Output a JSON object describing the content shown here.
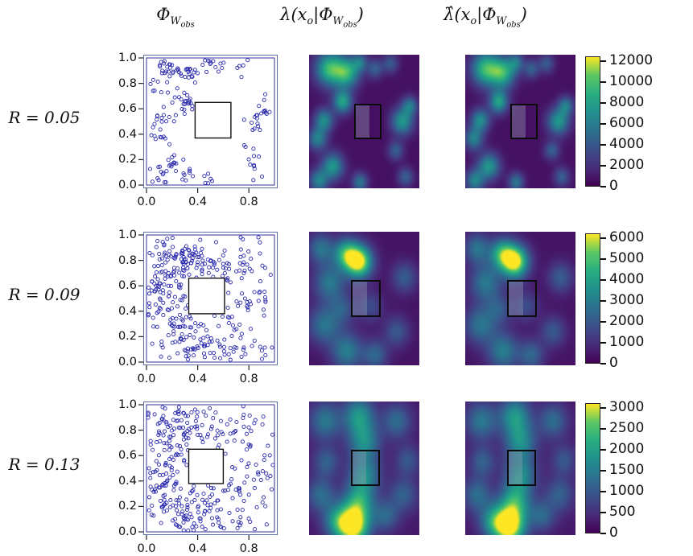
{
  "headers": {
    "col1": {
      "parts": [
        "Φ",
        "W",
        "obs"
      ]
    },
    "col2": {
      "parts": [
        "λ(x",
        "o",
        "|Φ",
        "W",
        "obs",
        ")"
      ]
    },
    "col3": {
      "parts": [
        "λ̂(x",
        "o",
        "|Φ",
        "W",
        "obs",
        ")"
      ]
    }
  },
  "chart_data": {
    "type": "heatmap",
    "description": "3x3 grid: observed clustered point patterns Φ_W_obs (left), true conditional intensity λ(x_o|Φ_W_obs) (middle) and estimated intensity λ̂(x_o|Φ_W_obs) (right) on [0,1]^2 with a square unobserved window, for cluster radii R = 0.05, 0.09, 0.13.",
    "colormap": "viridis",
    "point_color": "#2929ad",
    "rows": [
      {
        "label": "R = 0.05",
        "scatter": {
          "x_ticks": [
            "0.0",
            "0.4",
            "0.8"
          ],
          "y_ticks": [
            "1.0",
            "0.8",
            "0.6",
            "0.4",
            "0.2",
            "0.0"
          ],
          "xlim": [
            0,
            1
          ],
          "ylim": [
            0,
            1
          ],
          "cluster_radius": 0.05,
          "clusters": [
            [
              0.17,
              0.92,
              20
            ],
            [
              0.32,
              0.88,
              18
            ],
            [
              0.46,
              0.95,
              10
            ],
            [
              0.1,
              0.8,
              8
            ],
            [
              0.3,
              0.66,
              16
            ],
            [
              0.4,
              0.62,
              6
            ],
            [
              0.13,
              0.52,
              12
            ],
            [
              0.07,
              0.38,
              10
            ],
            [
              0.22,
              0.17,
              14
            ],
            [
              0.09,
              0.06,
              10
            ],
            [
              0.3,
              0.04,
              8
            ],
            [
              0.47,
              0.05,
              6
            ],
            [
              0.85,
              0.5,
              13
            ],
            [
              0.92,
              0.62,
              8
            ],
            [
              0.79,
              0.28,
              6
            ],
            [
              0.88,
              0.09,
              6
            ],
            [
              0.74,
              0.94,
              5
            ],
            [
              0.6,
              0.9,
              4
            ]
          ],
          "hole": [
            0.38,
            0.37,
            0.28,
            0.28
          ]
        },
        "field": {
          "base": 0.05,
          "blobs": [
            [
              0.18,
              0.9,
              0.09,
              0.7
            ],
            [
              0.34,
              0.87,
              0.08,
              0.65
            ],
            [
              0.3,
              0.65,
              0.06,
              0.6
            ],
            [
              0.13,
              0.51,
              0.06,
              0.5
            ],
            [
              0.07,
              0.37,
              0.06,
              0.45
            ],
            [
              0.21,
              0.16,
              0.07,
              0.55
            ],
            [
              0.08,
              0.05,
              0.06,
              0.45
            ],
            [
              0.46,
              0.04,
              0.05,
              0.4
            ],
            [
              0.85,
              0.5,
              0.07,
              0.55
            ],
            [
              0.92,
              0.62,
              0.05,
              0.4
            ],
            [
              0.79,
              0.28,
              0.05,
              0.3
            ],
            [
              0.88,
              0.08,
              0.05,
              0.3
            ],
            [
              0.74,
              0.94,
              0.05,
              0.28
            ],
            [
              0.6,
              0.9,
              0.05,
              0.3
            ],
            [
              0.46,
              0.95,
              0.05,
              0.35
            ]
          ],
          "square": [
            0.41,
            0.37,
            0.25,
            0.26
          ]
        },
        "colorbar": {
          "vmax": 12000,
          "ticks": [
            12000,
            10000,
            8000,
            6000,
            4000,
            2000,
            0
          ]
        }
      },
      {
        "label": "R = 0.09",
        "scatter": {
          "x_ticks": [
            "0.0",
            "0.4",
            "0.8"
          ],
          "y_ticks": [
            "1.0",
            "0.8",
            "0.6",
            "0.4",
            "0.2",
            "0.0"
          ],
          "xlim": [
            0,
            1
          ],
          "ylim": [
            0,
            1
          ],
          "cluster_radius": 0.09,
          "clusters": [
            [
              0.35,
              0.85,
              38
            ],
            [
              0.5,
              0.78,
              30
            ],
            [
              0.24,
              0.73,
              26
            ],
            [
              0.13,
              0.9,
              22
            ],
            [
              0.08,
              0.6,
              22
            ],
            [
              0.2,
              0.5,
              22
            ],
            [
              0.08,
              0.35,
              18
            ],
            [
              0.2,
              0.2,
              22
            ],
            [
              0.35,
              0.1,
              24
            ],
            [
              0.52,
              0.05,
              14
            ],
            [
              0.65,
              0.1,
              14
            ],
            [
              0.3,
              0.35,
              18
            ],
            [
              0.65,
              0.8,
              14
            ],
            [
              0.76,
              0.92,
              10
            ],
            [
              0.9,
              0.7,
              12
            ],
            [
              0.86,
              0.4,
              12
            ],
            [
              0.76,
              0.28,
              10
            ],
            [
              0.9,
              0.12,
              10
            ],
            [
              0.7,
              0.55,
              8
            ],
            [
              0.56,
              0.33,
              8
            ]
          ],
          "hole": [
            0.33,
            0.38,
            0.28,
            0.28
          ]
        },
        "field": {
          "base": 0.06,
          "blobs": [
            [
              0.45,
              0.78,
              0.085,
              1.0
            ],
            [
              0.33,
              0.84,
              0.08,
              0.6
            ],
            [
              0.18,
              0.62,
              0.1,
              0.4
            ],
            [
              0.1,
              0.88,
              0.08,
              0.38
            ],
            [
              0.13,
              0.3,
              0.1,
              0.38
            ],
            [
              0.34,
              0.1,
              0.1,
              0.42
            ],
            [
              0.6,
              0.07,
              0.08,
              0.32
            ],
            [
              0.87,
              0.66,
              0.08,
              0.28
            ],
            [
              0.8,
              0.25,
              0.08,
              0.26
            ],
            [
              0.55,
              0.44,
              0.08,
              0.22
            ],
            [
              0.3,
              0.42,
              0.08,
              0.25
            ]
          ],
          "square": [
            0.38,
            0.36,
            0.27,
            0.28
          ]
        },
        "colorbar": {
          "vmax": 6000,
          "ticks": [
            6000,
            5000,
            4000,
            3000,
            2000,
            1000,
            0
          ]
        }
      },
      {
        "label": "R = 0.13",
        "scatter": {
          "x_ticks": [
            "0.0",
            "0.4",
            "0.8"
          ],
          "y_ticks": [
            "1.0",
            "0.8",
            "0.6",
            "0.4",
            "0.2",
            "0.0"
          ],
          "xlim": [
            0,
            1
          ],
          "ylim": [
            0,
            1
          ],
          "cluster_radius": 0.13,
          "clusters": [
            [
              0.2,
              0.9,
              24
            ],
            [
              0.36,
              0.8,
              24
            ],
            [
              0.1,
              0.74,
              18
            ],
            [
              0.5,
              0.92,
              20
            ],
            [
              0.66,
              0.86,
              14
            ],
            [
              0.15,
              0.55,
              18
            ],
            [
              0.07,
              0.4,
              18
            ],
            [
              0.2,
              0.28,
              24
            ],
            [
              0.1,
              0.12,
              24
            ],
            [
              0.32,
              0.14,
              28
            ],
            [
              0.46,
              0.07,
              24
            ],
            [
              0.3,
              0.45,
              14
            ],
            [
              0.56,
              0.2,
              14
            ],
            [
              0.7,
              0.08,
              14
            ],
            [
              0.86,
              0.2,
              10
            ],
            [
              0.9,
              0.46,
              10
            ],
            [
              0.8,
              0.56,
              8
            ],
            [
              0.9,
              0.76,
              10
            ],
            [
              0.76,
              0.36,
              8
            ],
            [
              0.6,
              0.45,
              6
            ],
            [
              0.55,
              0.66,
              8
            ]
          ],
          "hole": [
            0.33,
            0.38,
            0.27,
            0.27
          ]
        },
        "field": {
          "base": 0.08,
          "blobs": [
            [
              0.4,
              0.06,
              0.1,
              1.0
            ],
            [
              0.45,
              0.24,
              0.1,
              0.55
            ],
            [
              0.5,
              0.45,
              0.1,
              0.45
            ],
            [
              0.5,
              0.7,
              0.1,
              0.45
            ],
            [
              0.45,
              0.9,
              0.1,
              0.5
            ],
            [
              0.14,
              0.86,
              0.1,
              0.38
            ],
            [
              0.8,
              0.86,
              0.09,
              0.33
            ],
            [
              0.1,
              0.3,
              0.09,
              0.33
            ],
            [
              0.15,
              0.55,
              0.08,
              0.28
            ],
            [
              0.86,
              0.3,
              0.09,
              0.28
            ],
            [
              0.9,
              0.56,
              0.08,
              0.24
            ],
            [
              0.7,
              0.14,
              0.08,
              0.3
            ],
            [
              0.25,
              0.1,
              0.09,
              0.45
            ]
          ],
          "square": [
            0.38,
            0.37,
            0.26,
            0.27
          ]
        },
        "colorbar": {
          "vmax": 3000,
          "ticks": [
            3000,
            2500,
            2000,
            1500,
            1000,
            500,
            0
          ]
        }
      }
    ]
  }
}
